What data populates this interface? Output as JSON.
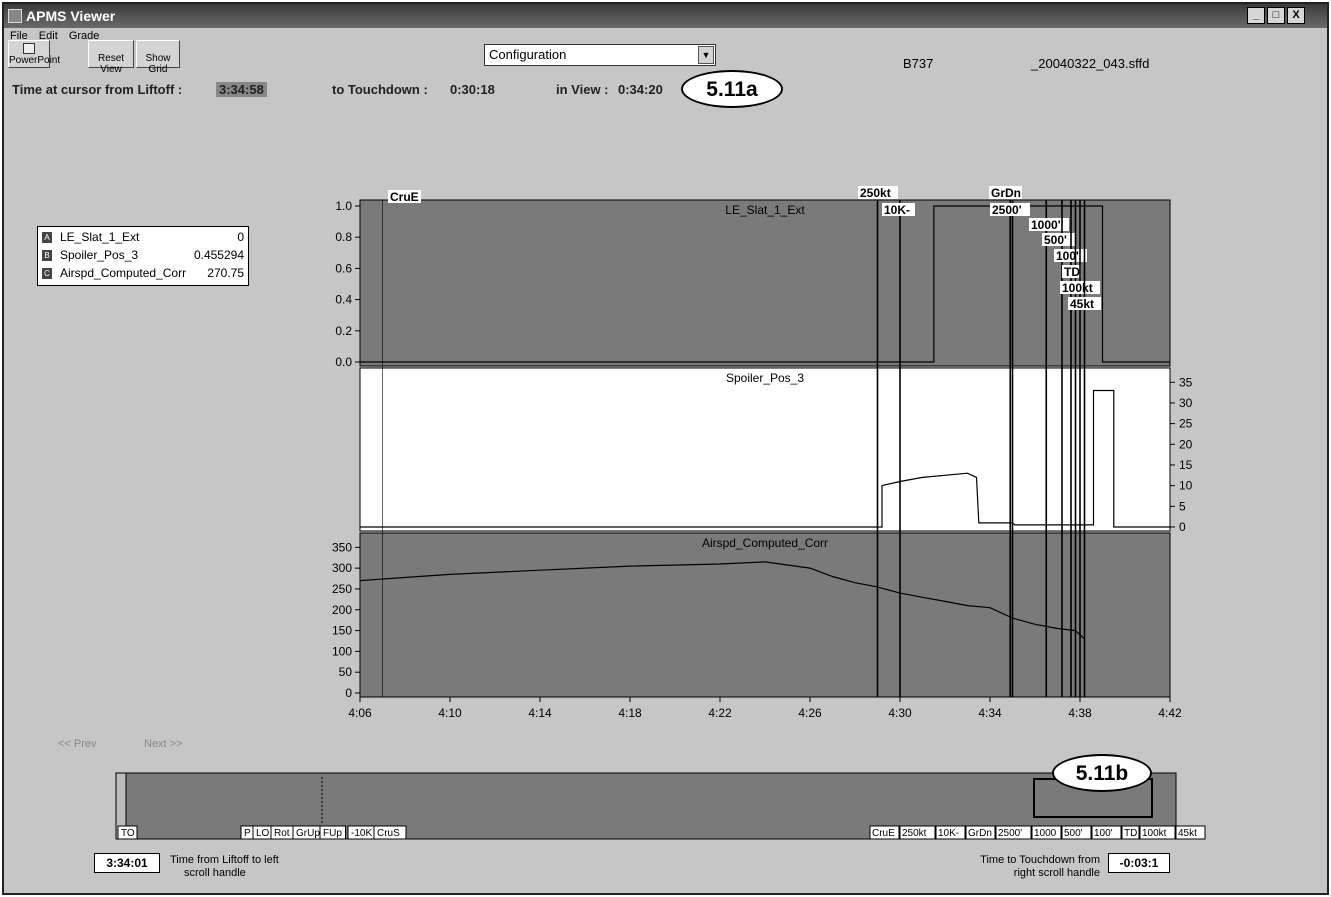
{
  "window": {
    "title": "APMS Viewer",
    "controls": [
      "_",
      "□",
      "X"
    ]
  },
  "menu": [
    "File",
    "Edit",
    "Grade"
  ],
  "toolbar": {
    "powerpoint": "PowerPoint",
    "reset_view": "Reset View",
    "show_grid": "Show Grid"
  },
  "config_select": {
    "value": "Configuration"
  },
  "aircraft": "B737",
  "filename": "_20040322_043.sffd",
  "time_header": {
    "cursor_label": "Time at cursor from Liftoff :",
    "cursor_value": "3:34:58",
    "touchdown_label": "to Touchdown :",
    "touchdown_value": "0:30:18",
    "inview_label": "in View :",
    "inview_value": "0:34:20"
  },
  "callout_top": "5.11a",
  "callout_bottom": "5.11b",
  "legend": [
    {
      "key": "A",
      "name": "LE_Slat_1_Ext",
      "value": "0"
    },
    {
      "key": "B",
      "name": "Spoiler_Pos_3",
      "value": "0.455294"
    },
    {
      "key": "C",
      "name": "Airspd_Computed_Corr",
      "value": "270.75"
    }
  ],
  "nav": {
    "prev": "<< Prev",
    "next": "Next >>"
  },
  "bottom": {
    "left_value": "3:34:01",
    "left_note": [
      "Time from Liftoff to left",
      "scroll handle"
    ],
    "right_note": [
      "Time to Touchdown from",
      "right scroll handle"
    ],
    "right_value": "-0:03:1"
  },
  "overview_markers_left": [
    "TO",
    "P",
    "LO",
    "Rot",
    "GrUp",
    "FUp",
    "-10K",
    "CruS"
  ],
  "overview_markers_right": [
    "CruE",
    "250kt",
    "10K-",
    "GrDn",
    "2500'",
    "1000",
    "500'",
    "100'",
    "TD",
    "100kt",
    "45kt"
  ],
  "colors": {
    "dark_panel": "#7a7a7a",
    "window_bg": "#c6c6c6",
    "white_panel": "#ffffff"
  },
  "chart_data": {
    "type": "line",
    "x_tick_labels": [
      "4:06",
      "4:10",
      "4:14",
      "4:18",
      "4:22",
      "4:26",
      "4:30",
      "4:34",
      "4:38",
      "4:42"
    ],
    "event_markers": [
      {
        "label": "CruE",
        "x": "4:07"
      },
      {
        "label": "250kt",
        "x": "4:29"
      },
      {
        "label": "10K-",
        "x": "4:30"
      },
      {
        "label": "GrDn",
        "x": "4:34.9"
      },
      {
        "label": "2500'",
        "x": "4:35"
      },
      {
        "label": "1000'",
        "x": "4:36.5"
      },
      {
        "label": "500'",
        "x": "4:37.2"
      },
      {
        "label": "100'",
        "x": "4:37.6"
      },
      {
        "label": "TD",
        "x": "4:37.8"
      },
      {
        "label": "100kt",
        "x": "4:38"
      },
      {
        "label": "45kt",
        "x": "4:38.2"
      }
    ],
    "panels": [
      {
        "name": "LE_Slat_1_Ext",
        "y_ticks": [
          "1.0",
          "0.8",
          "0.6",
          "0.4",
          "0.2",
          "0.0"
        ],
        "ylim": [
          0,
          1
        ],
        "series": [
          {
            "name": "LE_Slat_1_Ext",
            "x": [
              "4:06",
              "4:31.5",
              "4:31.5",
              "4:39",
              "4:39",
              "4:42"
            ],
            "values": [
              0,
              0,
              1,
              1,
              0,
              0
            ]
          }
        ]
      },
      {
        "name": "Spoiler_Pos_3",
        "y_ticks": [
          "35",
          "30",
          "25",
          "20",
          "15",
          "10",
          "5",
          "0"
        ],
        "ylim": [
          0,
          37
        ],
        "series": [
          {
            "name": "Spoiler_Pos_3",
            "x": [
              "4:06",
              "4:29.2",
              "4:29.2",
              "4:30",
              "4:31",
              "4:33",
              "4:33.4",
              "4:33.5",
              "4:35",
              "4:35.1",
              "4:38.6",
              "4:38.6",
              "4:39.5",
              "4:39.5",
              "4:42"
            ],
            "values": [
              0,
              0,
              10,
              11,
              12,
              13,
              12,
              1,
              1,
              0.5,
              0.5,
              33,
              33,
              0,
              0
            ]
          }
        ]
      },
      {
        "name": "Airspd_Computed_Corr",
        "y_ticks": [
          "350",
          "300",
          "250",
          "200",
          "150",
          "100",
          "50",
          "0"
        ],
        "ylim": [
          0,
          370
        ],
        "series": [
          {
            "name": "Airspd_Computed_Corr",
            "x": [
              "4:06",
              "4:10",
              "4:14",
              "4:18",
              "4:22",
              "4:24",
              "4:26",
              "4:27",
              "4:28",
              "4:29",
              "4:30",
              "4:31",
              "4:32",
              "4:33",
              "4:34",
              "4:35",
              "4:36",
              "4:37",
              "4:37.8",
              "4:38.2"
            ],
            "values": [
              270,
              285,
              295,
              305,
              310,
              315,
              300,
              280,
              265,
              255,
              240,
              230,
              220,
              210,
              205,
              180,
              165,
              155,
              150,
              130
            ]
          }
        ]
      }
    ]
  }
}
